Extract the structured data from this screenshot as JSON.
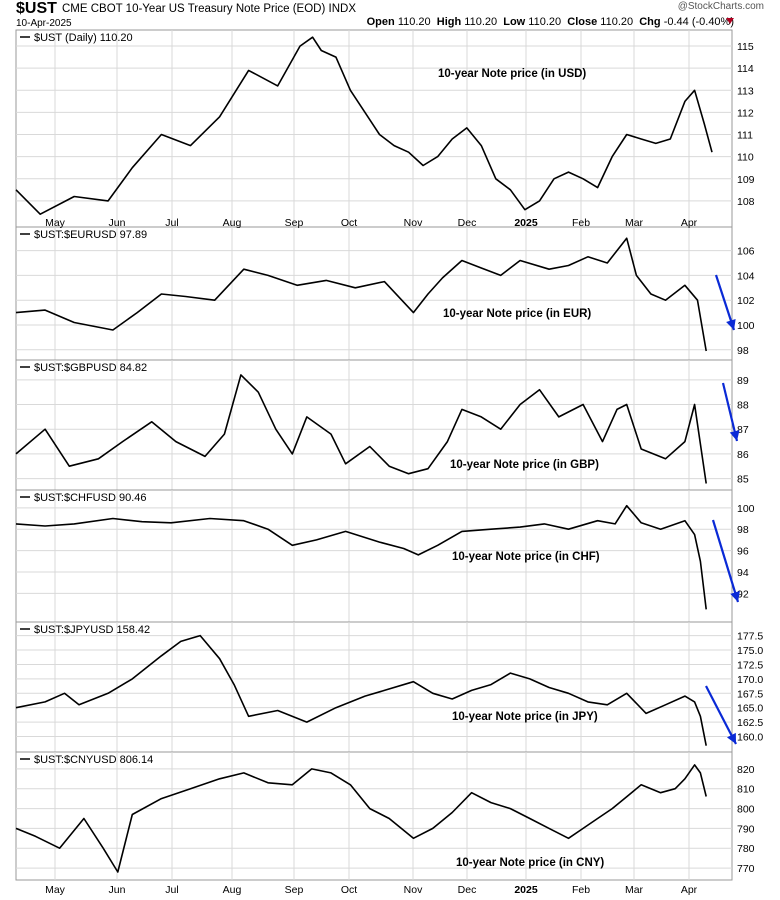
{
  "header": {
    "symbol": "$UST",
    "title": "CME CBOT 10-Year US Treasury Note Price (EOD)",
    "index_tag": "INDX",
    "date": "10-Apr-2025",
    "brand": "@StockCharts.com",
    "ohlc": {
      "open": "110.20",
      "high": "110.20",
      "low": "110.20",
      "close": "110.20",
      "chg": "-0.44 (-0.40%)"
    },
    "chg_icon": "down-triangle-icon"
  },
  "chart_data": [
    {
      "type": "line",
      "legend": "$UST (Daily) 110.20",
      "annotation": "10-year Note price (in USD)",
      "ylim": [
        107,
        115.5
      ],
      "yticks": [
        "115",
        "114",
        "113",
        "112",
        "111",
        "110",
        "109",
        "108"
      ],
      "x": [
        0,
        25,
        60,
        95,
        120,
        150,
        180,
        210,
        240,
        270,
        293,
        306,
        315,
        330,
        345,
        360,
        375,
        390,
        405,
        420,
        435,
        450,
        465,
        480,
        495,
        510,
        525,
        540,
        555,
        570,
        585,
        600,
        615,
        630,
        645,
        660,
        675,
        690,
        700,
        710,
        718
      ],
      "values": [
        108.5,
        107.4,
        108.2,
        108.0,
        109.5,
        111.0,
        110.5,
        111.8,
        113.9,
        113.2,
        115.0,
        115.4,
        114.8,
        114.5,
        113.0,
        112.0,
        111.0,
        110.5,
        110.2,
        109.6,
        110.0,
        110.8,
        111.3,
        110.5,
        109.0,
        108.5,
        107.6,
        108.0,
        109.0,
        109.3,
        109.0,
        108.6,
        110.0,
        111.0,
        110.8,
        110.6,
        110.8,
        112.5,
        113.0,
        111.5,
        110.2
      ],
      "arrow": false
    },
    {
      "type": "line",
      "legend": "$UST:$EURUSD 97.89",
      "annotation": "10-year Note price (in EUR)",
      "ylim": [
        97.5,
        107.5
      ],
      "yticks": [
        "106",
        "104",
        "102",
        "100",
        "98"
      ],
      "x": [
        0,
        30,
        60,
        100,
        125,
        150,
        175,
        205,
        235,
        260,
        290,
        320,
        350,
        380,
        410,
        425,
        440,
        460,
        480,
        500,
        520,
        550,
        570,
        590,
        610,
        630,
        640,
        655,
        670,
        690,
        703,
        712
      ],
      "values": [
        101.0,
        101.2,
        100.2,
        99.6,
        101.0,
        102.5,
        102.3,
        102.0,
        104.5,
        104.0,
        103.2,
        103.6,
        103.0,
        103.5,
        101.0,
        102.5,
        103.8,
        105.2,
        104.6,
        104.0,
        105.2,
        104.5,
        104.8,
        105.5,
        105.0,
        107.0,
        104.0,
        102.5,
        102.0,
        103.2,
        102.0,
        97.9
      ],
      "arrow": true
    },
    {
      "type": "line",
      "legend": "$UST:$GBPUSD 84.82",
      "annotation": "10-year Note price (in GBP)",
      "ylim": [
        84.7,
        89.6
      ],
      "yticks": [
        "89",
        "88",
        "87",
        "86",
        "85"
      ],
      "x": [
        0,
        30,
        55,
        85,
        110,
        140,
        165,
        195,
        215,
        232,
        250,
        268,
        285,
        300,
        325,
        340,
        365,
        385,
        405,
        425,
        445,
        460,
        480,
        500,
        520,
        540,
        560,
        585,
        605,
        620,
        630,
        645,
        670,
        690,
        700,
        712
      ],
      "values": [
        86.0,
        87.0,
        85.5,
        85.8,
        86.5,
        87.3,
        86.5,
        85.9,
        86.8,
        89.2,
        88.5,
        87.0,
        86.0,
        87.5,
        86.8,
        85.6,
        86.3,
        85.5,
        85.2,
        85.4,
        86.5,
        87.8,
        87.5,
        87.0,
        88.0,
        88.6,
        87.5,
        88.0,
        86.5,
        87.8,
        88.0,
        86.2,
        85.8,
        86.5,
        88.0,
        84.8
      ],
      "arrow": true
    },
    {
      "type": "line",
      "legend": "$UST:$CHFUSD 90.46",
      "annotation": "10-year Note price (in CHF)",
      "ylim": [
        89.7,
        101.2
      ],
      "yticks": [
        "100",
        "98",
        "96",
        "94",
        "92"
      ],
      "x": [
        0,
        30,
        60,
        100,
        130,
        160,
        200,
        235,
        260,
        285,
        310,
        340,
        375,
        400,
        415,
        435,
        460,
        490,
        520,
        545,
        570,
        600,
        618,
        630,
        645,
        665,
        690,
        700,
        706,
        712
      ],
      "values": [
        98.5,
        98.3,
        98.5,
        99.0,
        98.7,
        98.6,
        99.0,
        98.8,
        98.0,
        96.5,
        97.0,
        97.8,
        96.8,
        96.2,
        95.6,
        96.5,
        97.8,
        98.0,
        98.2,
        98.5,
        98.0,
        98.8,
        98.5,
        100.2,
        98.6,
        98.0,
        98.8,
        97.5,
        95.0,
        90.5
      ],
      "arrow": true
    },
    {
      "type": "line",
      "legend": "$UST:$JPYUSD 158.42",
      "annotation": "10-year Note price (in JPY)",
      "ylim": [
        158,
        179
      ],
      "yticks": [
        "177.5",
        "175.0",
        "172.5",
        "170.0",
        "167.5",
        "165.0",
        "162.5",
        "160.0"
      ],
      "x": [
        0,
        30,
        50,
        65,
        95,
        120,
        150,
        170,
        190,
        210,
        225,
        240,
        270,
        300,
        330,
        360,
        380,
        410,
        430,
        450,
        470,
        490,
        510,
        530,
        550,
        570,
        590,
        610,
        630,
        650,
        670,
        690,
        700,
        706,
        712
      ],
      "values": [
        165.0,
        166.0,
        167.5,
        165.5,
        167.5,
        170.0,
        174.0,
        176.5,
        177.5,
        173.5,
        169.0,
        163.5,
        164.5,
        162.5,
        165.0,
        167.0,
        168.0,
        169.5,
        167.5,
        166.5,
        168.0,
        169.0,
        171.0,
        170.0,
        168.5,
        167.5,
        166.0,
        165.5,
        167.5,
        164.0,
        165.5,
        167.0,
        166.0,
        163.5,
        158.4
      ],
      "arrow": true
    },
    {
      "type": "line",
      "legend": "$UST:$CNYUSD 806.14",
      "annotation": "10-year Note price (in CNY)",
      "ylim": [
        766,
        826
      ],
      "yticks": [
        "820",
        "810",
        "800",
        "790",
        "780",
        "770"
      ],
      "x": [
        0,
        20,
        45,
        70,
        90,
        105,
        120,
        150,
        180,
        210,
        235,
        260,
        285,
        305,
        325,
        345,
        365,
        385,
        410,
        430,
        450,
        470,
        490,
        510,
        530,
        550,
        570,
        585,
        600,
        615,
        630,
        645,
        665,
        680,
        690,
        700,
        706,
        712
      ],
      "values": [
        790,
        786,
        780,
        795,
        780,
        768,
        797,
        805,
        810,
        815,
        818,
        813,
        812,
        820,
        818,
        812,
        800,
        795,
        785,
        790,
        798,
        808,
        803,
        800,
        795,
        790,
        785,
        790,
        795,
        800,
        806,
        812,
        808,
        810,
        815,
        822,
        818,
        806.1
      ],
      "arrow": false
    }
  ],
  "x_axis": {
    "top_labels": [
      "May",
      "Jun",
      "Jul",
      "Aug",
      "Sep",
      "Oct",
      "Nov",
      "Dec",
      "2025",
      "Feb",
      "Mar",
      "Apr"
    ],
    "bottom_labels": [
      "May",
      "Jun",
      "Jul",
      "Aug",
      "Sep",
      "Oct",
      "Nov",
      "Dec",
      "2025",
      "Feb",
      "Mar",
      "Apr"
    ]
  },
  "colors": {
    "line": "#000000",
    "grid": "#d9d9d9",
    "arrow": "#0a2ad6",
    "panel_border": "#999999"
  }
}
